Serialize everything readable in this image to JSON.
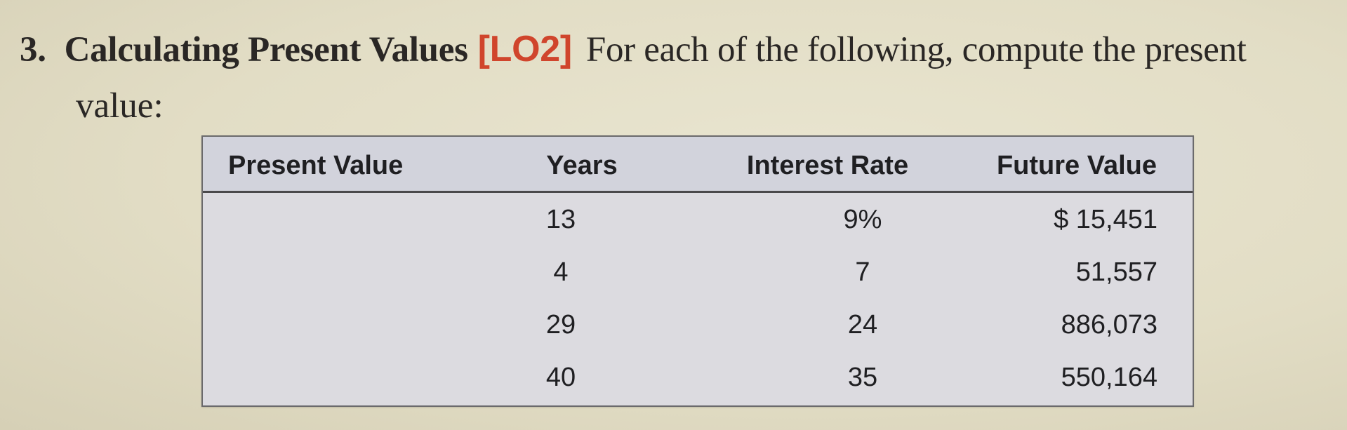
{
  "problem": {
    "number": "3.",
    "title": "Calculating Present Values",
    "lo": "[LO2]",
    "text_line1": "For each of the following, compute the present",
    "text_line2": "value:"
  },
  "table": {
    "headers": [
      "Present Value",
      "Years",
      "Interest Rate",
      "Future Value"
    ],
    "rows": [
      {
        "present_value": "",
        "years": "13",
        "rate": "9%",
        "future_value": "$ 15,451"
      },
      {
        "present_value": "",
        "years": "4",
        "rate": "7",
        "future_value": "51,557"
      },
      {
        "present_value": "",
        "years": "29",
        "rate": "24",
        "future_value": "886,073"
      },
      {
        "present_value": "",
        "years": "40",
        "rate": "35",
        "future_value": "550,164"
      }
    ]
  },
  "colors": {
    "lo_accent": "#d0452c",
    "page_background": "#e6e1cb",
    "table_background": "#dcdbe0"
  }
}
